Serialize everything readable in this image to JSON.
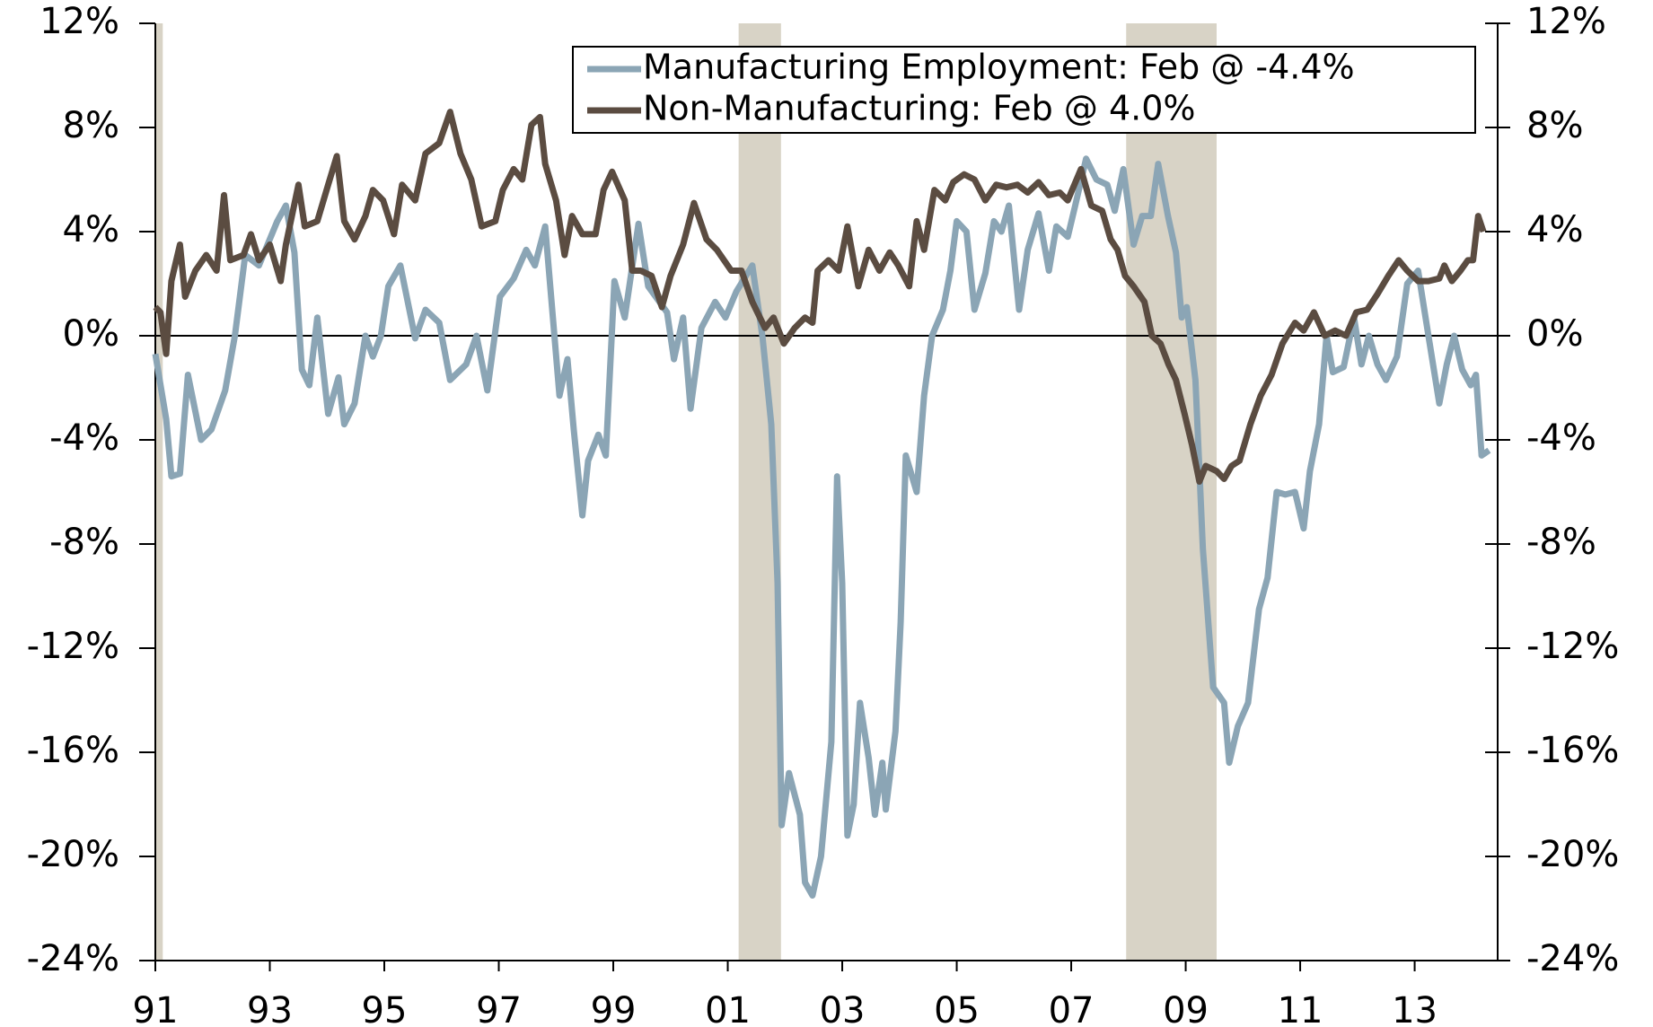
{
  "chart_data": {
    "type": "line",
    "xlim": [
      1991,
      2014.45
    ],
    "xticks": [
      {
        "value": 1991,
        "label": "91"
      },
      {
        "value": 1993,
        "label": "93"
      },
      {
        "value": 1995,
        "label": "95"
      },
      {
        "value": 1997,
        "label": "97"
      },
      {
        "value": 1999,
        "label": "99"
      },
      {
        "value": 2001,
        "label": "01"
      },
      {
        "value": 2003,
        "label": "03"
      },
      {
        "value": 2005,
        "label": "05"
      },
      {
        "value": 2007,
        "label": "07"
      },
      {
        "value": 2009,
        "label": "09"
      },
      {
        "value": 2011,
        "label": "11"
      },
      {
        "value": 2013,
        "label": "13"
      }
    ],
    "ylim": [
      -24,
      12
    ],
    "yticks": [
      {
        "value": 12,
        "label": "12%"
      },
      {
        "value": 8,
        "label": "8%"
      },
      {
        "value": 4,
        "label": "4%"
      },
      {
        "value": 0,
        "label": "0%"
      },
      {
        "value": -4,
        "label": "-4%"
      },
      {
        "value": -8,
        "label": "-8%"
      },
      {
        "value": -12,
        "label": "-12%"
      },
      {
        "value": -16,
        "label": "-16%"
      },
      {
        "value": -20,
        "label": "-20%"
      },
      {
        "value": -24,
        "label": "-24%"
      }
    ],
    "y2lim": [
      -24,
      12
    ],
    "y2ticks": [
      {
        "value": 12,
        "label": "12%"
      },
      {
        "value": 8,
        "label": "8%"
      },
      {
        "value": 4,
        "label": "4%"
      },
      {
        "value": 0,
        "label": "0%"
      },
      {
        "value": -4,
        "label": "-4%"
      },
      {
        "value": -8,
        "label": "-8%"
      },
      {
        "value": -12,
        "label": "-12%"
      },
      {
        "value": -16,
        "label": "-16%"
      },
      {
        "value": -20,
        "label": "-20%"
      },
      {
        "value": -24,
        "label": "-24%"
      }
    ],
    "recessions": [
      [
        1991.0,
        1991.13
      ],
      [
        2001.19,
        2001.93
      ],
      [
        2007.96,
        2009.54
      ]
    ],
    "recession_color": "#d8d3c6",
    "legend": "upper right",
    "series": [
      {
        "name": "Manufacturing Employment: Feb @ -4.4%",
        "color": "#8ba5b5",
        "x": [
          1991.0,
          1991.19,
          1991.28,
          1991.43,
          1991.57,
          1991.8,
          1991.98,
          1992.22,
          1992.39,
          1992.57,
          1992.81,
          1993.13,
          1993.28,
          1993.43,
          1993.56,
          1993.69,
          1993.83,
          1994.02,
          1994.2,
          1994.3,
          1994.48,
          1994.67,
          1994.8,
          1994.94,
          1995.07,
          1995.28,
          1995.54,
          1995.72,
          1995.96,
          1996.15,
          1996.43,
          1996.61,
          1996.8,
          1997.02,
          1997.26,
          1997.48,
          1997.63,
          1997.81,
          1998.06,
          1998.2,
          1998.31,
          1998.46,
          1998.56,
          1998.74,
          1998.87,
          1999.02,
          1999.2,
          1999.44,
          1999.61,
          1999.94,
          2000.06,
          2000.22,
          2000.35,
          2000.54,
          2000.78,
          2000.96,
          2001.15,
          2001.43,
          2001.61,
          2001.76,
          2001.87,
          2001.94,
          2002.07,
          2002.26,
          2002.35,
          2002.48,
          2002.63,
          2002.81,
          2002.91,
          2003.0,
          2003.09,
          2003.2,
          2003.31,
          2003.46,
          2003.57,
          2003.7,
          2003.76,
          2003.93,
          2004.02,
          2004.11,
          2004.3,
          2004.43,
          2004.57,
          2004.76,
          2004.89,
          2005.0,
          2005.17,
          2005.31,
          2005.5,
          2005.65,
          2005.78,
          2005.91,
          2006.09,
          2006.24,
          2006.43,
          2006.61,
          2006.74,
          2006.94,
          2007.07,
          2007.26,
          2007.44,
          2007.63,
          2007.76,
          2007.91,
          2008.09,
          2008.24,
          2008.39,
          2008.52,
          2008.69,
          2008.83,
          2008.93,
          2009.02,
          2009.17,
          2009.3,
          2009.48,
          2009.67,
          2009.76,
          2009.91,
          2010.09,
          2010.28,
          2010.43,
          2010.59,
          2010.74,
          2010.91,
          2011.06,
          2011.17,
          2011.33,
          2011.46,
          2011.57,
          2011.76,
          2011.94,
          2012.07,
          2012.2,
          2012.35,
          2012.5,
          2012.69,
          2012.87,
          2013.06,
          2013.24,
          2013.43,
          2013.56,
          2013.69,
          2013.83,
          2013.98,
          2014.07,
          2014.17,
          2014.3
        ],
        "values": [
          -0.7,
          -3.2,
          -5.4,
          -5.3,
          -1.5,
          -4.0,
          -3.6,
          -2.1,
          0.0,
          3.1,
          2.7,
          4.4,
          5.0,
          3.2,
          -1.3,
          -1.9,
          0.7,
          -3.0,
          -1.6,
          -3.4,
          -2.6,
          0.0,
          -0.8,
          0.0,
          1.9,
          2.7,
          -0.1,
          1.0,
          0.5,
          -1.7,
          -1.1,
          0.0,
          -2.1,
          1.5,
          2.2,
          3.3,
          2.7,
          4.2,
          -2.3,
          -0.9,
          -3.6,
          -6.9,
          -4.8,
          -3.8,
          -4.6,
          2.1,
          0.7,
          4.3,
          1.9,
          0.9,
          -0.9,
          0.7,
          -2.8,
          0.3,
          1.3,
          0.7,
          1.7,
          2.7,
          -0.1,
          -3.4,
          -9.5,
          -18.8,
          -16.8,
          -18.4,
          -21.0,
          -21.5,
          -20.0,
          -15.6,
          -5.4,
          -9.5,
          -19.2,
          -18.0,
          -14.1,
          -16.2,
          -18.4,
          -16.4,
          -18.2,
          -15.2,
          -11.0,
          -4.6,
          -6.0,
          -2.3,
          0.0,
          1.0,
          2.5,
          4.4,
          4.0,
          1.0,
          2.4,
          4.4,
          4.0,
          5.0,
          1.0,
          3.3,
          4.7,
          2.5,
          4.2,
          3.8,
          5.0,
          6.8,
          6.0,
          5.8,
          4.8,
          6.4,
          3.5,
          4.6,
          4.6,
          6.6,
          4.6,
          3.2,
          0.7,
          1.1,
          -1.7,
          -8.2,
          -13.5,
          -14.1,
          -16.4,
          -15.0,
          -14.1,
          -10.5,
          -9.3,
          -6.0,
          -6.1,
          -6.0,
          -7.4,
          -5.2,
          -3.4,
          0.0,
          -1.4,
          -1.2,
          0.7,
          -1.1,
          0.0,
          -1.1,
          -1.7,
          -0.8,
          2.0,
          2.5,
          0.0,
          -2.6,
          -1.1,
          0.0,
          -1.3,
          -1.9,
          -1.5,
          -4.6,
          -4.4
        ]
      },
      {
        "name": "Non-Manufacturing: Feb @ 4.0%",
        "color": "#5b4c41",
        "x": [
          1991.0,
          1991.09,
          1991.19,
          1991.28,
          1991.43,
          1991.52,
          1991.7,
          1991.89,
          1992.07,
          1992.2,
          1992.31,
          1992.54,
          1992.67,
          1992.81,
          1993.0,
          1993.19,
          1993.28,
          1993.5,
          1993.61,
          1993.83,
          1994.02,
          1994.17,
          1994.3,
          1994.48,
          1994.67,
          1994.8,
          1994.98,
          1995.17,
          1995.31,
          1995.54,
          1995.72,
          1995.96,
          1996.15,
          1996.33,
          1996.52,
          1996.7,
          1996.94,
          1997.07,
          1997.26,
          1997.41,
          1997.57,
          1997.72,
          1997.81,
          1998.0,
          1998.15,
          1998.28,
          1998.46,
          1998.69,
          1998.83,
          1998.98,
          1999.2,
          1999.33,
          1999.48,
          1999.67,
          1999.85,
          2000.0,
          2000.22,
          2000.41,
          2000.63,
          2000.81,
          2001.06,
          2001.24,
          2001.43,
          2001.65,
          2001.8,
          2001.98,
          2002.17,
          2002.35,
          2002.48,
          2002.57,
          2002.76,
          2002.94,
          2003.09,
          2003.28,
          2003.46,
          2003.65,
          2003.83,
          2003.98,
          2004.17,
          2004.3,
          2004.43,
          2004.61,
          2004.8,
          2004.94,
          2005.13,
          2005.31,
          2005.5,
          2005.69,
          2005.87,
          2006.06,
          2006.24,
          2006.43,
          2006.61,
          2006.8,
          2006.94,
          2007.17,
          2007.35,
          2007.54,
          2007.69,
          2007.81,
          2007.94,
          2008.09,
          2008.28,
          2008.41,
          2008.56,
          2008.7,
          2008.83,
          2008.98,
          2009.11,
          2009.24,
          2009.35,
          2009.54,
          2009.67,
          2009.8,
          2009.94,
          2010.13,
          2010.31,
          2010.5,
          2010.69,
          2010.91,
          2011.06,
          2011.24,
          2011.43,
          2011.61,
          2011.8,
          2011.98,
          2012.17,
          2012.35,
          2012.54,
          2012.72,
          2012.87,
          2013.06,
          2013.24,
          2013.43,
          2013.52,
          2013.65,
          2013.8,
          2013.93,
          2014.02,
          2014.11,
          2014.2
        ],
        "values": [
          1.1,
          0.9,
          -0.7,
          2.1,
          3.5,
          1.5,
          2.5,
          3.1,
          2.5,
          5.4,
          2.9,
          3.1,
          3.9,
          2.9,
          3.5,
          2.1,
          3.5,
          5.8,
          4.2,
          4.4,
          5.8,
          6.9,
          4.4,
          3.7,
          4.6,
          5.6,
          5.2,
          3.9,
          5.8,
          5.2,
          7.0,
          7.4,
          8.6,
          7.0,
          6.0,
          4.2,
          4.4,
          5.6,
          6.4,
          6.0,
          8.1,
          8.4,
          6.6,
          5.2,
          3.1,
          4.6,
          3.9,
          3.9,
          5.6,
          6.3,
          5.2,
          2.5,
          2.5,
          2.3,
          1.1,
          2.3,
          3.5,
          5.1,
          3.7,
          3.3,
          2.5,
          2.5,
          1.3,
          0.3,
          0.7,
          -0.3,
          0.3,
          0.7,
          0.5,
          2.5,
          2.9,
          2.5,
          4.2,
          1.9,
          3.3,
          2.5,
          3.2,
          2.7,
          1.9,
          4.4,
          3.3,
          5.6,
          5.2,
          5.9,
          6.2,
          6.0,
          5.2,
          5.8,
          5.7,
          5.8,
          5.5,
          5.9,
          5.4,
          5.5,
          5.2,
          6.4,
          5.0,
          4.8,
          3.7,
          3.3,
          2.3,
          1.9,
          1.3,
          0.0,
          -0.3,
          -1.1,
          -1.7,
          -3.0,
          -4.2,
          -5.6,
          -5.0,
          -5.2,
          -5.5,
          -5.0,
          -4.8,
          -3.4,
          -2.3,
          -1.5,
          -0.3,
          0.5,
          0.2,
          0.9,
          0.0,
          0.2,
          0.0,
          0.9,
          1.0,
          1.6,
          2.3,
          2.9,
          2.5,
          2.1,
          2.1,
          2.2,
          2.7,
          2.1,
          2.5,
          2.9,
          2.9,
          4.6,
          4.0
        ]
      }
    ]
  }
}
